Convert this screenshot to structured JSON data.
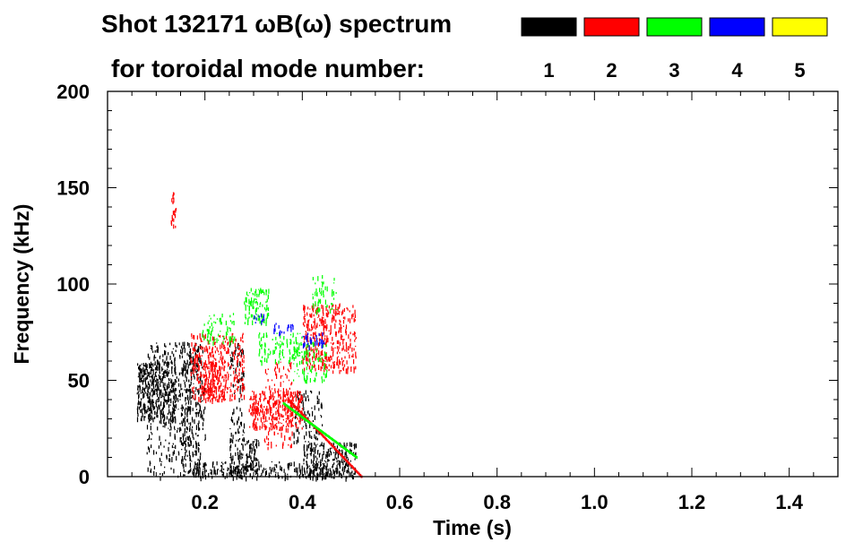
{
  "chart_data": {
    "type": "heatmap",
    "title": "Shot 132171 ωB(ω) spectrum",
    "subtitle": "for toroidal mode number:",
    "xlabel": "Time (s)",
    "ylabel": "Frequency (kHz)",
    "xlim": [
      0.0,
      1.5
    ],
    "ylim": [
      0,
      200
    ],
    "x_ticks": [
      0.2,
      0.4,
      0.6,
      0.8,
      1.0,
      1.2,
      1.4
    ],
    "x_tick_labels": [
      "0.2",
      "0.4",
      "0.6",
      "0.8",
      "1.0",
      "1.2",
      "1.4"
    ],
    "y_ticks": [
      0,
      50,
      100,
      150,
      200
    ],
    "y_tick_labels": [
      "0",
      "50",
      "100",
      "150",
      "200"
    ],
    "grid": false,
    "legend_position": "top-right",
    "legend": [
      {
        "label": "1",
        "color": "#000000"
      },
      {
        "label": "2",
        "color": "#ff0000"
      },
      {
        "label": "3",
        "color": "#00ff00"
      },
      {
        "label": "4",
        "color": "#0000ff"
      },
      {
        "label": "5",
        "color": "#ffff00"
      }
    ],
    "series": [
      {
        "mode": 1,
        "color": "#000000",
        "regions": [
          {
            "t": [
              0.06,
              0.14
            ],
            "f": [
              30,
              60
            ],
            "density": 0.8
          },
          {
            "t": [
              0.08,
              0.19
            ],
            "f": [
              0,
              70
            ],
            "density": 0.25
          },
          {
            "t": [
              0.15,
              0.2
            ],
            "f": [
              0,
              70
            ],
            "density": 0.3
          },
          {
            "t": [
              0.18,
              0.45
            ],
            "f": [
              0,
              8
            ],
            "density": 0.45
          },
          {
            "t": [
              0.25,
              0.31
            ],
            "f": [
              0,
              20
            ],
            "density": 0.6
          },
          {
            "t": [
              0.25,
              0.28
            ],
            "f": [
              20,
              70
            ],
            "density": 0.3
          },
          {
            "t": [
              0.4,
              0.51
            ],
            "f": [
              0,
              18
            ],
            "density": 0.7
          },
          {
            "t": [
              0.38,
              0.44
            ],
            "f": [
              18,
              45
            ],
            "density": 0.3
          }
        ]
      },
      {
        "mode": 2,
        "color": "#ff0000",
        "regions": [
          {
            "t": [
              0.17,
              0.28
            ],
            "f": [
              40,
              75
            ],
            "density": 0.45
          },
          {
            "t": [
              0.19,
              0.24
            ],
            "f": [
              40,
              60
            ],
            "density": 0.6
          },
          {
            "t": [
              0.29,
              0.4
            ],
            "f": [
              25,
              45
            ],
            "density": 0.65
          },
          {
            "t": [
              0.32,
              0.38
            ],
            "f": [
              15,
              60
            ],
            "density": 0.25
          },
          {
            "t": [
              0.4,
              0.51
            ],
            "f": [
              55,
              90
            ],
            "density": 0.5
          },
          {
            "t": [
              0.13,
              0.14
            ],
            "f": [
              130,
              148
            ],
            "density": 0.5
          }
        ],
        "lines": [
          {
            "t": [
              0.37,
              0.52
            ],
            "f": [
              40,
              0
            ]
          }
        ]
      },
      {
        "mode": 3,
        "color": "#00ff00",
        "regions": [
          {
            "t": [
              0.19,
              0.26
            ],
            "f": [
              70,
              85
            ],
            "density": 0.3
          },
          {
            "t": [
              0.28,
              0.33
            ],
            "f": [
              80,
              98
            ],
            "density": 0.55
          },
          {
            "t": [
              0.31,
              0.4
            ],
            "f": [
              60,
              75
            ],
            "density": 0.35
          },
          {
            "t": [
              0.38,
              0.45
            ],
            "f": [
              50,
              70
            ],
            "density": 0.35
          },
          {
            "t": [
              0.42,
              0.47
            ],
            "f": [
              85,
              105
            ],
            "density": 0.25
          }
        ],
        "lines": [
          {
            "t": [
              0.36,
              0.51
            ],
            "f": [
              38,
              10
            ]
          }
        ]
      },
      {
        "mode": 4,
        "color": "#0000ff",
        "regions": [
          {
            "t": [
              0.3,
              0.32
            ],
            "f": [
              80,
              85
            ],
            "density": 0.5
          },
          {
            "t": [
              0.34,
              0.38
            ],
            "f": [
              75,
              80
            ],
            "density": 0.5
          },
          {
            "t": [
              0.4,
              0.45
            ],
            "f": [
              68,
              75
            ],
            "density": 0.5
          }
        ]
      },
      {
        "mode": 5,
        "color": "#ffff00",
        "regions": []
      }
    ]
  }
}
